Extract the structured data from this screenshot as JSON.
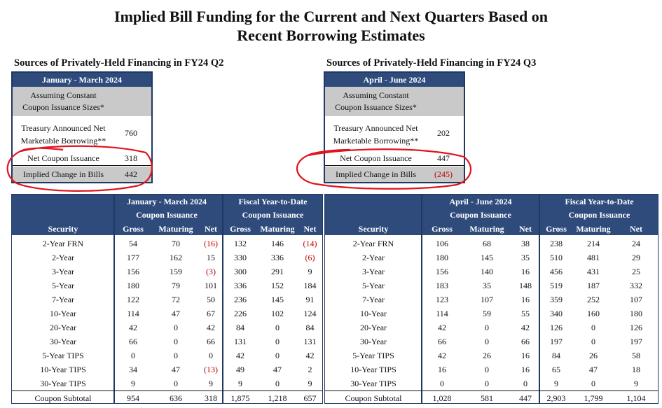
{
  "title_line1": "Implied Bill Funding for the Current and Next Quarters Based on",
  "title_line2": "Recent Borrowing Estimates",
  "left": {
    "section": "Sources of Privately-Held Financing in FY24 Q2",
    "period": "January - March 2024",
    "assume_line1": "Assuming Constant",
    "assume_line2": "Coupon Issuance Sizes*",
    "treas_line1": "Treasury Announced Net",
    "treas_line2": "Marketable Borrowing**",
    "treas_value": "760",
    "net_label": "Net Coupon Issuance",
    "net_value": "318",
    "implied_label": "Implied Change in Bills",
    "implied_value": "442"
  },
  "right": {
    "section": "Sources of Privately-Held Financing in FY24 Q3",
    "period": "April - June 2024",
    "assume_line1": "Assuming Constant",
    "assume_line2": "Coupon Issuance Sizes*",
    "treas_line1": "Treasury Announced Net",
    "treas_line2": "Marketable Borrowing**",
    "treas_value": "202",
    "net_label": "Net Coupon Issuance",
    "net_value": "447",
    "implied_label": "Implied Change in Bills",
    "implied_value": "(245)"
  },
  "table_left": {
    "group1_line1": "January - March 2024",
    "group1_line2": "Coupon Issuance",
    "group2_line1": "Fiscal Year-to-Date",
    "group2_line2": "Coupon Issuance",
    "security_header": "Security",
    "cols": [
      "Gross",
      "Maturing",
      "Net",
      "Gross",
      "Maturing",
      "Net"
    ],
    "rows": [
      [
        "2-Year FRN",
        "54",
        "70",
        "(16)",
        "132",
        "146",
        "(14)"
      ],
      [
        "2-Year",
        "177",
        "162",
        "15",
        "330",
        "336",
        "(6)"
      ],
      [
        "3-Year",
        "156",
        "159",
        "(3)",
        "300",
        "291",
        "9"
      ],
      [
        "5-Year",
        "180",
        "79",
        "101",
        "336",
        "152",
        "184"
      ],
      [
        "7-Year",
        "122",
        "72",
        "50",
        "236",
        "145",
        "91"
      ],
      [
        "10-Year",
        "114",
        "47",
        "67",
        "226",
        "102",
        "124"
      ],
      [
        "20-Year",
        "42",
        "0",
        "42",
        "84",
        "0",
        "84"
      ],
      [
        "30-Year",
        "66",
        "0",
        "66",
        "131",
        "0",
        "131"
      ],
      [
        "5-Year TIPS",
        "0",
        "0",
        "0",
        "42",
        "0",
        "42"
      ],
      [
        "10-Year TIPS",
        "34",
        "47",
        "(13)",
        "49",
        "47",
        "2"
      ],
      [
        "30-Year TIPS",
        "9",
        "0",
        "9",
        "9",
        "0",
        "9"
      ]
    ],
    "subtotal": [
      "Coupon Subtotal",
      "954",
      "636",
      "318",
      "1,875",
      "1,218",
      "657"
    ]
  },
  "table_right": {
    "group1_line1": "April - June 2024",
    "group1_line2": "Coupon Issuance",
    "group2_line1": "Fiscal Year-to-Date",
    "group2_line2": "Coupon Issuance",
    "security_header": "Security",
    "cols": [
      "Gross",
      "Maturing",
      "Net",
      "Gross",
      "Maturing",
      "Net"
    ],
    "rows": [
      [
        "2-Year FRN",
        "106",
        "68",
        "38",
        "238",
        "214",
        "24"
      ],
      [
        "2-Year",
        "180",
        "145",
        "35",
        "510",
        "481",
        "29"
      ],
      [
        "3-Year",
        "156",
        "140",
        "16",
        "456",
        "431",
        "25"
      ],
      [
        "5-Year",
        "183",
        "35",
        "148",
        "519",
        "187",
        "332"
      ],
      [
        "7-Year",
        "123",
        "107",
        "16",
        "359",
        "252",
        "107"
      ],
      [
        "10-Year",
        "114",
        "59",
        "55",
        "340",
        "160",
        "180"
      ],
      [
        "20-Year",
        "42",
        "0",
        "42",
        "126",
        "0",
        "126"
      ],
      [
        "30-Year",
        "66",
        "0",
        "66",
        "197",
        "0",
        "197"
      ],
      [
        "5-Year TIPS",
        "42",
        "26",
        "16",
        "84",
        "26",
        "58"
      ],
      [
        "10-Year TIPS",
        "16",
        "0",
        "16",
        "65",
        "47",
        "18"
      ],
      [
        "30-Year TIPS",
        "0",
        "0",
        "0",
        "9",
        "0",
        "9"
      ]
    ],
    "subtotal": [
      "Coupon Subtotal",
      "1,028",
      "581",
      "447",
      "2,903",
      "1,799",
      "1,104"
    ]
  },
  "colors": {
    "header_bg": "#2e4b7c",
    "shade": "#c9c9c9",
    "negative": "#c00000",
    "annotation": "#e0141e"
  }
}
